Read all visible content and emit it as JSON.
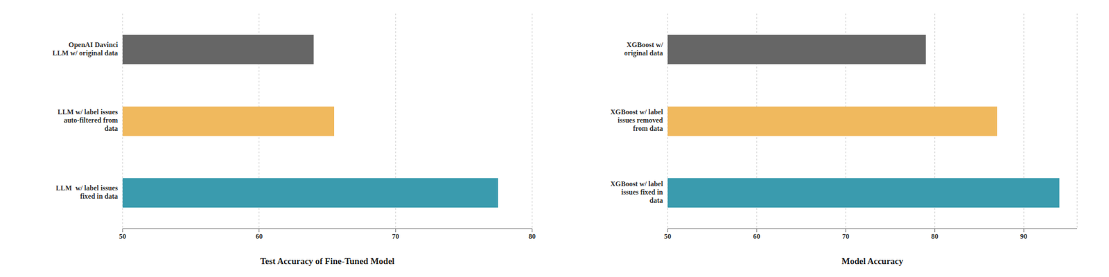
{
  "chart_data": [
    {
      "type": "bar",
      "title": "Test Accuracy of Fine-Tuned Model",
      "orientation": "horizontal",
      "categories": [
        "OpenAI Davinci\nLLM w/ original data",
        "LLM w/ label issues\nauto-filtered from\ndata",
        "LLM  w/ label issues\nfixed in data"
      ],
      "values": [
        64.0,
        65.5,
        77.5
      ],
      "colors": [
        "#666666",
        "#F0B95E",
        "#3A9BAE"
      ],
      "xlim": [
        50,
        80
      ],
      "xticks": [
        50,
        60,
        70,
        80
      ],
      "grid": true
    },
    {
      "type": "bar",
      "title": "Model Accuracy",
      "orientation": "horizontal",
      "categories": [
        "XGBoost w/\noriginal data",
        "XGBoost w/ label\nissues removed\nfrom data",
        "XGBoost w/ label\nissues fixed in\ndata"
      ],
      "values": [
        79.0,
        87.0,
        94.0
      ],
      "colors": [
        "#666666",
        "#F0B95E",
        "#3A9BAE"
      ],
      "xlim": [
        50,
        96
      ],
      "xticks": [
        50,
        60,
        70,
        80,
        90
      ],
      "grid": true
    }
  ]
}
